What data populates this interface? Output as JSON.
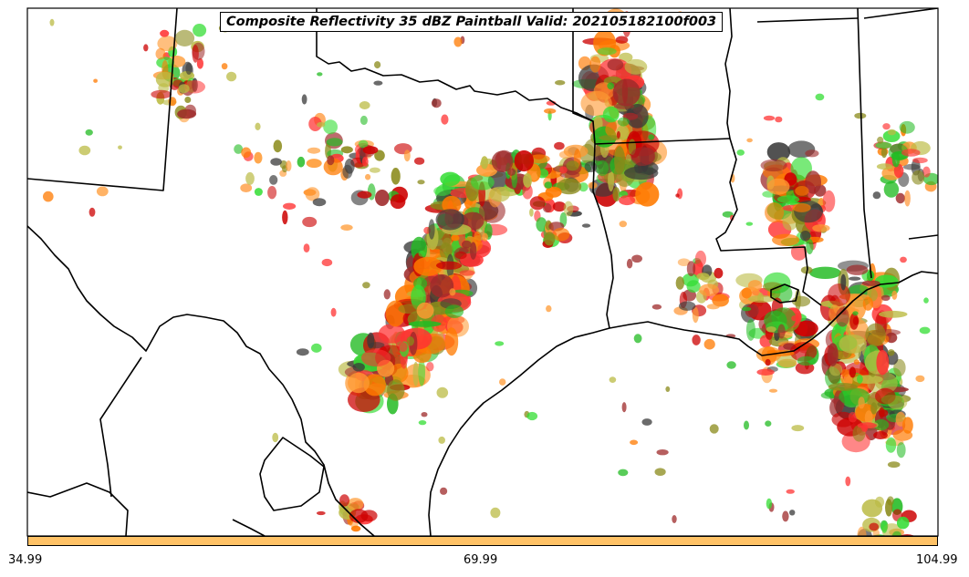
{
  "title": "Composite Reflectivity 35 dBZ Paintball Valid: 202105182100f003",
  "colorbar": {
    "color": "#ffc266",
    "ticks": [
      "34.99",
      "69.99",
      "104.99"
    ]
  },
  "member_colors": [
    "#cc0000",
    "#ff3333",
    "#ff7a00",
    "#ff9a33",
    "#9e2a2a",
    "#8a8a1a",
    "#22bb22",
    "#33dd33",
    "#3a3a3a",
    "#bbbb44"
  ],
  "map": {
    "borders_color": "#000000",
    "background": "#ffffff"
  }
}
